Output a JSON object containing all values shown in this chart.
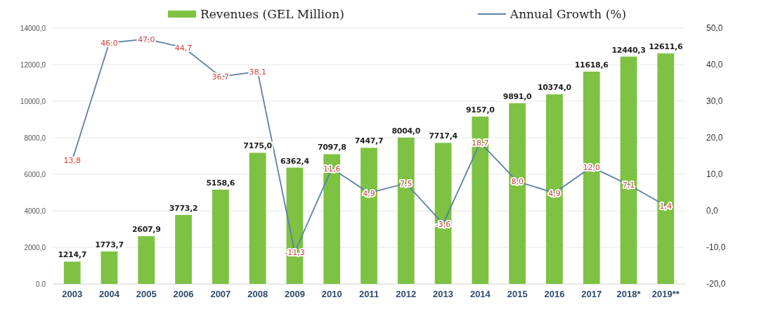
{
  "chart_data": {
    "type": "bar",
    "categories": [
      "2003",
      "2004",
      "2005",
      "2006",
      "2007",
      "2008",
      "2009",
      "2010",
      "2011",
      "2012",
      "2013",
      "2014",
      "2015",
      "2016",
      "2017",
      "2018*",
      "2019**"
    ],
    "series": [
      {
        "name": "Revenues (GEL Million)",
        "type": "bar",
        "color": "#7dc242",
        "values": [
          1214.7,
          1773.7,
          2607.9,
          3773.2,
          5158.6,
          7175.0,
          6362.4,
          7097.8,
          7447.7,
          8004.0,
          7717.4,
          9157.0,
          9891.0,
          10374.0,
          11618.6,
          12440.3,
          12611.6
        ],
        "value_labels": [
          "1214,7",
          "1773,7",
          "2607,9",
          "3773,2",
          "5158,6",
          "7175,0",
          "6362,4",
          "7097,8",
          "7447,7",
          "8004,0",
          "7717,4",
          "9157,0",
          "9891,0",
          "10374,0",
          "11618,6",
          "12440,3",
          "12611,6"
        ]
      },
      {
        "name": "Annual Growth (%)",
        "type": "line",
        "axis": "y2",
        "color": "#5b7fa6",
        "values": [
          13.8,
          46.0,
          47.0,
          44.7,
          36.7,
          38.1,
          -11.3,
          11.6,
          4.9,
          7.5,
          -3.6,
          18.7,
          8.0,
          4.9,
          12.0,
          7.1,
          1.4
        ],
        "value_labels": [
          "13,8",
          "46,0",
          "47,0",
          "44,7",
          "36,7",
          "38,1",
          "-11,3",
          "11,6",
          "4,9",
          "7,5",
          "-3,6",
          "18,7",
          "8,0",
          "4,9",
          "12,0",
          "7,1",
          "1,4"
        ]
      }
    ],
    "ylim": [
      0,
      14000
    ],
    "yticks": [
      {
        "value": 0,
        "label": "0.0"
      },
      {
        "value": 2000,
        "label": "2000,0"
      },
      {
        "value": 4000,
        "label": "4000,0"
      },
      {
        "value": 6000,
        "label": "6000,0"
      },
      {
        "value": 8000,
        "label": "8000,0"
      },
      {
        "value": 10000,
        "label": "10000,0"
      },
      {
        "value": 12000,
        "label": "12000,0"
      },
      {
        "value": 14000,
        "label": "14000,0"
      }
    ],
    "y2lim": [
      -20,
      50
    ],
    "y2ticks": [
      {
        "value": -20,
        "label": "-20,0"
      },
      {
        "value": -10,
        "label": "-10,0"
      },
      {
        "value": 0,
        "label": "0,0"
      },
      {
        "value": 10,
        "label": "10,0"
      },
      {
        "value": 20,
        "label": "20,0"
      },
      {
        "value": 30,
        "label": "30,0"
      },
      {
        "value": 40,
        "label": "40,0"
      },
      {
        "value": 50,
        "label": "50,0"
      }
    ],
    "grid": "y",
    "legend": "top",
    "line_style": "solid"
  }
}
